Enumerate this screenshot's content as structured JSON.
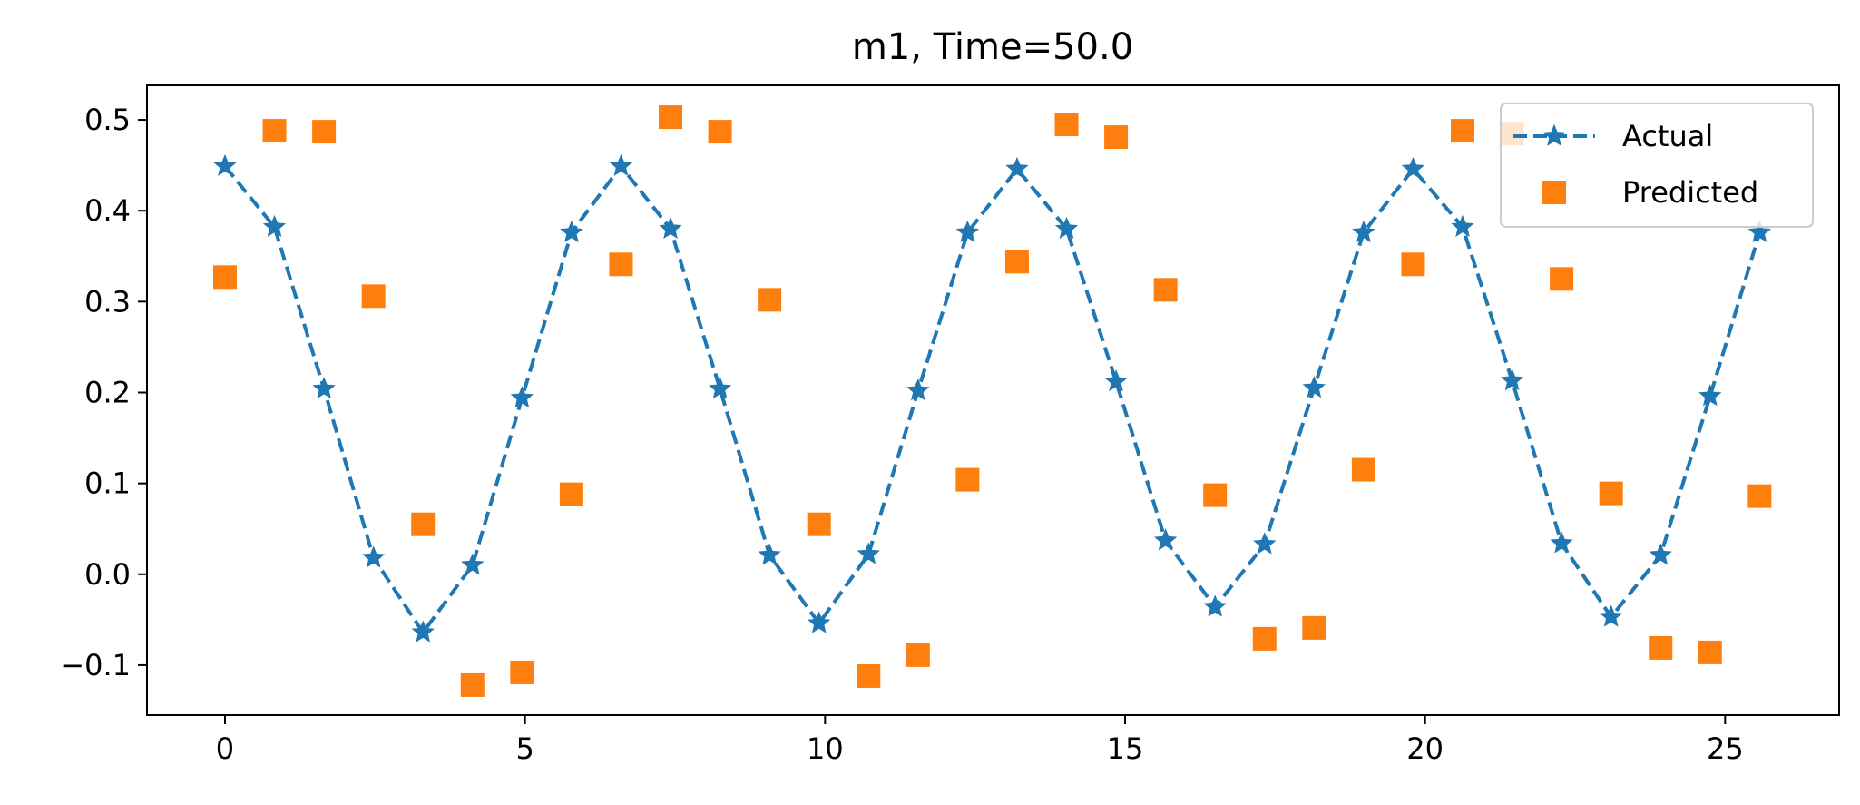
{
  "chart_data": {
    "type": "scatter",
    "title": "m1, Time=50.0",
    "xlabel": "",
    "ylabel": "",
    "xlim": [
      -1.3,
      26.9
    ],
    "ylim": [
      -0.155,
      0.538
    ],
    "grid": false,
    "legend_position": "top-right",
    "x_ticks": [
      {
        "value": 0,
        "label": "0"
      },
      {
        "value": 5,
        "label": "5"
      },
      {
        "value": 10,
        "label": "10"
      },
      {
        "value": 15,
        "label": "15"
      },
      {
        "value": 20,
        "label": "20"
      },
      {
        "value": 25,
        "label": "25"
      }
    ],
    "y_ticks": [
      {
        "value": -0.1,
        "label": "−0.1"
      },
      {
        "value": 0.0,
        "label": "0.0"
      },
      {
        "value": 0.1,
        "label": "0.1"
      },
      {
        "value": 0.2,
        "label": "0.2"
      },
      {
        "value": 0.3,
        "label": "0.3"
      },
      {
        "value": 0.4,
        "label": "0.4"
      },
      {
        "value": 0.5,
        "label": "0.5"
      }
    ],
    "series": [
      {
        "name": "Actual",
        "style": "dashed-line-star",
        "color": "#1f77b4",
        "points": [
          [
            0.0,
            0.449
          ],
          [
            0.825,
            0.382
          ],
          [
            1.65,
            0.204
          ],
          [
            2.475,
            0.018
          ],
          [
            3.3,
            -0.064
          ],
          [
            4.125,
            0.01
          ],
          [
            4.95,
            0.194
          ],
          [
            5.775,
            0.376
          ],
          [
            6.6,
            0.449
          ],
          [
            7.425,
            0.38
          ],
          [
            8.25,
            0.204
          ],
          [
            9.075,
            0.021
          ],
          [
            9.9,
            -0.054
          ],
          [
            10.725,
            0.022
          ],
          [
            11.55,
            0.202
          ],
          [
            12.375,
            0.376
          ],
          [
            13.2,
            0.446
          ],
          [
            14.025,
            0.38
          ],
          [
            14.85,
            0.212
          ],
          [
            15.675,
            0.037
          ],
          [
            16.5,
            -0.036
          ],
          [
            17.325,
            0.033
          ],
          [
            18.15,
            0.205
          ],
          [
            18.975,
            0.376
          ],
          [
            19.8,
            0.446
          ],
          [
            20.625,
            0.382
          ],
          [
            21.45,
            0.213
          ],
          [
            22.275,
            0.034
          ],
          [
            23.1,
            -0.047
          ],
          [
            23.925,
            0.021
          ],
          [
            24.75,
            0.196
          ],
          [
            25.575,
            0.376
          ]
        ]
      },
      {
        "name": "Predicted",
        "style": "square-marker",
        "color": "#ff7f0e",
        "points": [
          [
            0.0,
            0.327
          ],
          [
            0.825,
            0.488
          ],
          [
            1.65,
            0.487
          ],
          [
            2.475,
            0.306
          ],
          [
            3.3,
            0.055
          ],
          [
            4.125,
            -0.122
          ],
          [
            4.95,
            -0.108
          ],
          [
            5.775,
            0.088
          ],
          [
            6.6,
            0.341
          ],
          [
            7.425,
            0.503
          ],
          [
            8.25,
            0.487
          ],
          [
            9.075,
            0.302
          ],
          [
            9.9,
            0.055
          ],
          [
            10.725,
            -0.112
          ],
          [
            11.55,
            -0.089
          ],
          [
            12.375,
            0.104
          ],
          [
            13.2,
            0.344
          ],
          [
            14.025,
            0.495
          ],
          [
            14.85,
            0.481
          ],
          [
            15.675,
            0.313
          ],
          [
            16.5,
            0.087
          ],
          [
            17.325,
            -0.071
          ],
          [
            18.15,
            -0.059
          ],
          [
            18.975,
            0.115
          ],
          [
            19.8,
            0.341
          ],
          [
            20.625,
            0.488
          ],
          [
            21.45,
            0.485
          ],
          [
            22.275,
            0.325
          ],
          [
            23.1,
            0.089
          ],
          [
            23.925,
            -0.081
          ],
          [
            24.75,
            -0.086
          ],
          [
            25.575,
            0.086
          ]
        ]
      }
    ]
  }
}
